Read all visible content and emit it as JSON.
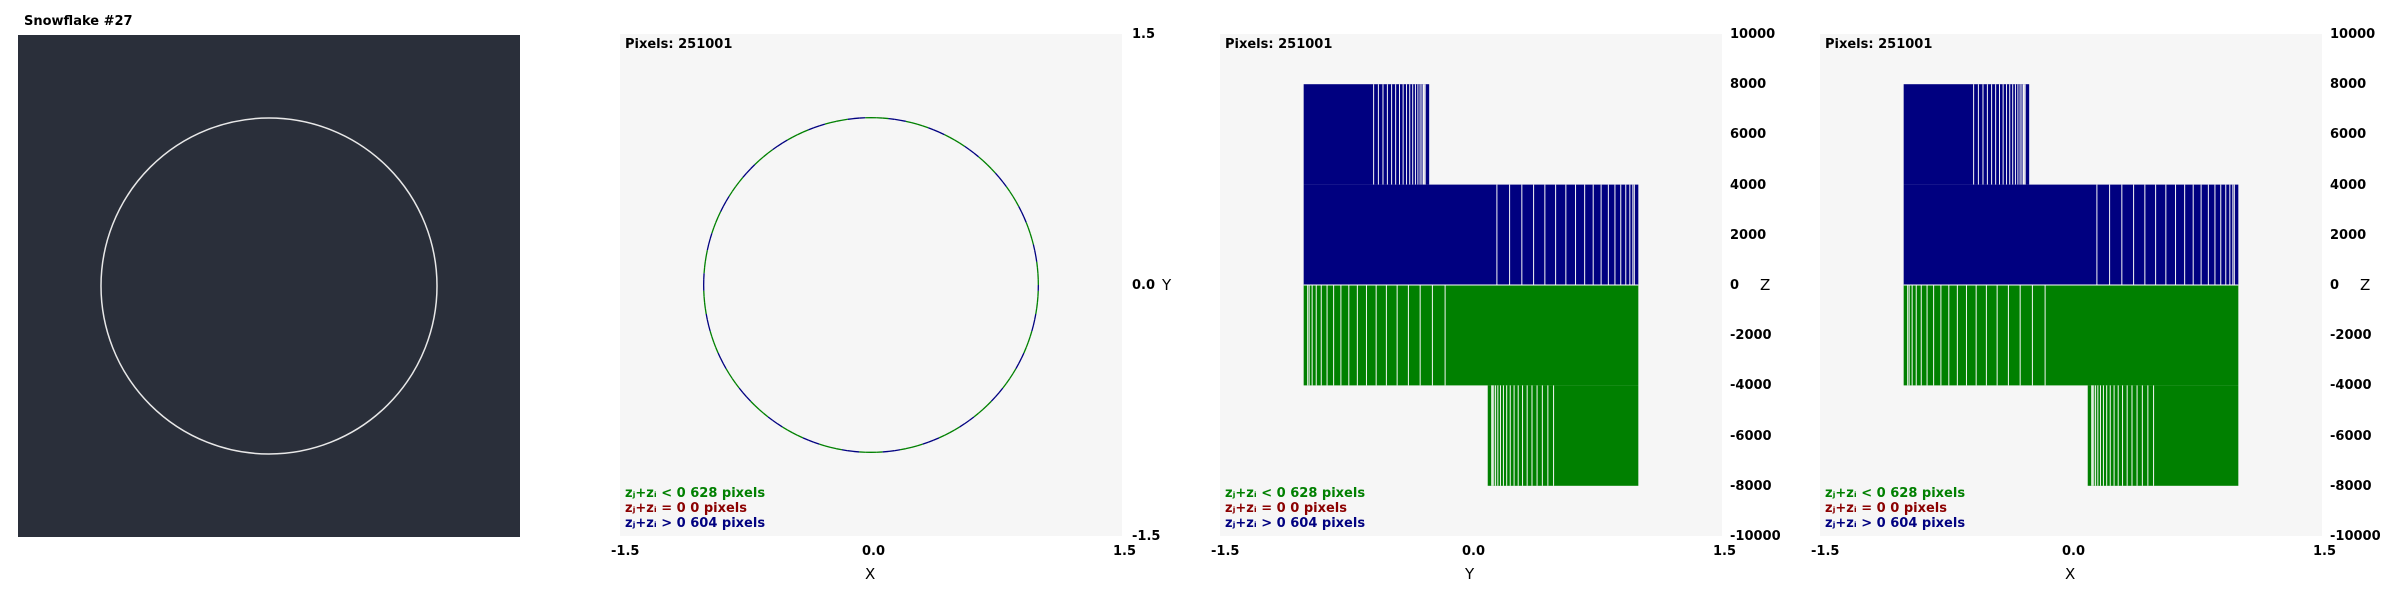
{
  "window": {
    "title": "Snowflake #27"
  },
  "colors": {
    "view_bg": "#2a2f3a",
    "circle_in_view": "#e8e8e8",
    "plot_bg": "#f6f6f6",
    "neg": "#008000",
    "zero": "#8b0000",
    "pos": "#000080"
  },
  "legend": {
    "neg": "zⱼ+zᵢ < 0  628 pixels",
    "zero": "zⱼ+zᵢ = 0  0 pixels",
    "pos": "zⱼ+zᵢ > 0  604 pixels"
  },
  "chart_data": [
    {
      "type": "scatter",
      "pixels_label": "Pixels: 251001",
      "xlabel": "X",
      "ylabel": "Y",
      "xlim": [
        -1.5,
        1.5
      ],
      "ylim": [
        -1.5,
        1.5
      ],
      "xticks": [
        "-1.5",
        "0.0",
        "1.5"
      ],
      "yticks": [
        "1.5",
        "0.0",
        "-1.5"
      ],
      "shape": "unit circle",
      "radius": 1.0
    },
    {
      "type": "bar",
      "pixels_label": "Pixels: 251001",
      "xlabel": "Y",
      "ylabel": "Z",
      "xlim": [
        -1.5,
        1.5
      ],
      "ylim": [
        -10000,
        10000
      ],
      "xticks": [
        "-1.5",
        "0.0",
        "1.5"
      ],
      "yticks": [
        "10000",
        "8000",
        "6000",
        "4000",
        "2000",
        "0",
        "-2000",
        "-4000",
        "-6000",
        "-8000",
        "-10000"
      ],
      "blocks": [
        {
          "series": "pos",
          "x0": -1.0,
          "x1": -0.25,
          "y0": 4000,
          "y1": 8000
        },
        {
          "series": "pos",
          "x0": -1.0,
          "x1": 1.0,
          "y0": 0,
          "y1": 4000
        },
        {
          "series": "neg",
          "x0": -1.0,
          "x1": 1.0,
          "y0": -4000,
          "y1": 0
        },
        {
          "series": "neg",
          "x0": 0.1,
          "x1": 1.0,
          "y0": -8000,
          "y1": -4000
        }
      ]
    },
    {
      "type": "bar",
      "pixels_label": "Pixels: 251001",
      "xlabel": "X",
      "ylabel": "Z",
      "xlim": [
        -1.5,
        1.5
      ],
      "ylim": [
        -10000,
        10000
      ],
      "xticks": [
        "-1.5",
        "0.0",
        "1.5"
      ],
      "yticks": [
        "10000",
        "8000",
        "6000",
        "4000",
        "2000",
        "0",
        "-2000",
        "-4000",
        "-6000",
        "-8000",
        "-10000"
      ],
      "blocks": [
        {
          "series": "pos",
          "x0": -1.0,
          "x1": -0.25,
          "y0": 4000,
          "y1": 8000
        },
        {
          "series": "pos",
          "x0": -1.0,
          "x1": 1.0,
          "y0": 0,
          "y1": 4000
        },
        {
          "series": "neg",
          "x0": -1.0,
          "x1": 1.0,
          "y0": -4000,
          "y1": 0
        },
        {
          "series": "neg",
          "x0": 0.1,
          "x1": 1.0,
          "y0": -8000,
          "y1": -4000
        }
      ]
    }
  ]
}
